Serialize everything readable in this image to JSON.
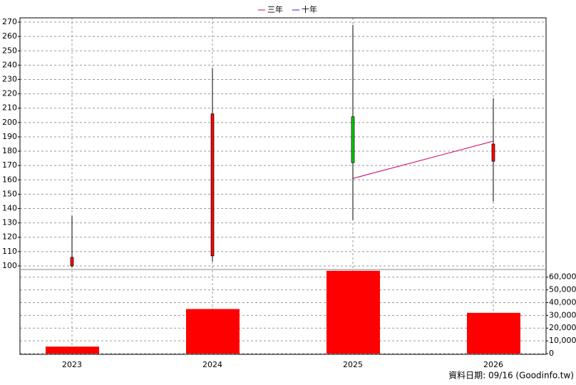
{
  "chart_data": {
    "type": "candlestick",
    "categories": [
      "2023",
      "2024",
      "2025",
      "2026"
    ],
    "ohlc": {
      "open": [
        100,
        107,
        204,
        173
      ],
      "high": [
        135,
        238,
        268,
        217
      ],
      "low": [
        99,
        103,
        132,
        145
      ],
      "close": [
        106,
        206,
        172,
        185
      ],
      "up_color": "#ff0000",
      "down_color": "#00cc00"
    },
    "series": [
      {
        "name": "三年",
        "color": "#cc0066",
        "values": [
          null,
          null,
          161,
          187
        ]
      },
      {
        "name": "十年",
        "color": "#6600cc",
        "values": [
          null,
          null,
          null,
          null
        ]
      }
    ],
    "volume": {
      "color": "#ff0000",
      "values": [
        5500,
        35000,
        65000,
        32000
      ],
      "axis": "y2"
    },
    "ylim": [
      97.5,
      273
    ],
    "yticks": [
      100,
      110,
      120,
      130,
      140,
      150,
      160,
      170,
      180,
      190,
      200,
      210,
      220,
      230,
      240,
      250,
      260,
      270
    ],
    "y2lim": [
      0,
      66000
    ],
    "y2ticks": [
      0,
      {
        "value": 10000,
        "label": "10,000"
      },
      {
        "value": 20000,
        "label": "20,000"
      },
      {
        "value": 30000,
        "label": "30,000"
      },
      {
        "value": 40000,
        "label": "40,000"
      },
      {
        "value": 50000,
        "label": "50,000"
      },
      {
        "value": 60000,
        "label": "60,000"
      }
    ],
    "grid": true,
    "legend": "top",
    "footer": "資料日期: 09/16  (Goodinfo.tw)"
  }
}
